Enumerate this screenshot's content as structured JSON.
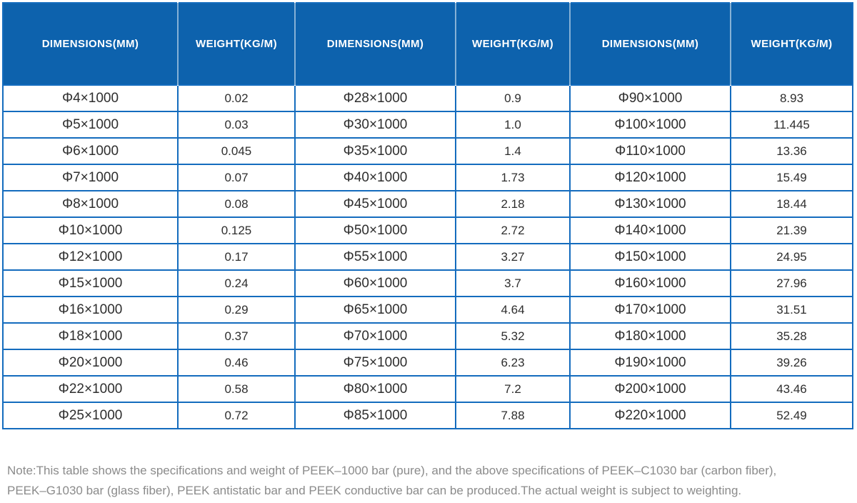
{
  "colors": {
    "header_bg": "#0d62ad",
    "grid_border": "#146cbe",
    "cell_text": "#2e2e2e",
    "note_text": "#8b8b8b"
  },
  "table": {
    "column_headers": [
      "DIMENSIONS(MM)",
      "WEIGHT(KG/M)",
      "DIMENSIONS(MM)",
      "WEIGHT(KG/M)",
      "DIMENSIONS(MM)",
      "WEIGHT(KG/M)"
    ],
    "rows": [
      [
        "Φ4×1000",
        "0.02",
        "Φ28×1000",
        "0.9",
        "Φ90×1000",
        "8.93"
      ],
      [
        "Φ5×1000",
        "0.03",
        "Φ30×1000",
        "1.0",
        "Φ100×1000",
        "11.445"
      ],
      [
        "Φ6×1000",
        "0.045",
        "Φ35×1000",
        "1.4",
        "Φ110×1000",
        "13.36"
      ],
      [
        "Φ7×1000",
        "0.07",
        "Φ40×1000",
        "1.73",
        "Φ120×1000",
        "15.49"
      ],
      [
        "Φ8×1000",
        "0.08",
        "Φ45×1000",
        "2.18",
        "Φ130×1000",
        "18.44"
      ],
      [
        "Φ10×1000",
        "0.125",
        "Φ50×1000",
        "2.72",
        "Φ140×1000",
        "21.39"
      ],
      [
        "Φ12×1000",
        "0.17",
        "Φ55×1000",
        "3.27",
        "Φ150×1000",
        "24.95"
      ],
      [
        "Φ15×1000",
        "0.24",
        "Φ60×1000",
        "3.7",
        "Φ160×1000",
        "27.96"
      ],
      [
        "Φ16×1000",
        "0.29",
        "Φ65×1000",
        "4.64",
        "Φ170×1000",
        "31.51"
      ],
      [
        "Φ18×1000",
        "0.37",
        "Φ70×1000",
        "5.32",
        "Φ180×1000",
        "35.28"
      ],
      [
        "Φ20×1000",
        "0.46",
        "Φ75×1000",
        "6.23",
        "Φ190×1000",
        "39.26"
      ],
      [
        "Φ22×1000",
        "0.58",
        "Φ80×1000",
        "7.2",
        "Φ200×1000",
        "43.46"
      ],
      [
        "Φ25×1000",
        "0.72",
        "Φ85×1000",
        "7.88",
        "Φ220×1000",
        "52.49"
      ]
    ]
  },
  "note": {
    "lines": [
      "Note:This table shows the specifications and weight of PEEK–1000 bar (pure), and the above specifications of PEEK–C1030 bar (carbon fiber),",
      "PEEK–G1030 bar (glass fiber), PEEK antistatic bar and PEEK conductive bar can be produced.The actual weight is subject to weighting."
    ]
  }
}
